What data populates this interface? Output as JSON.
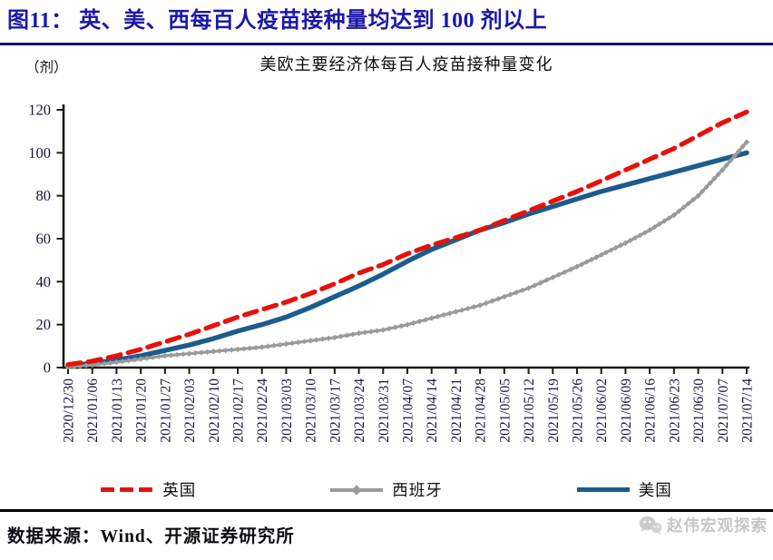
{
  "header": {
    "title": "图11： 英、美、西每百人疫苗接种量均达到 100 剂以上"
  },
  "chart_data": {
    "type": "line",
    "title": "美欧主要经济体每百人疫苗接种量变化",
    "unit_label": "（剂）",
    "xlabel": "",
    "ylabel": "（剂）",
    "ylim": [
      0,
      120
    ],
    "yticks": [
      0,
      20,
      40,
      60,
      80,
      100,
      120
    ],
    "grid": false,
    "legend_position": "bottom",
    "categories": [
      "2020/12/30",
      "2021/01/06",
      "2021/01/13",
      "2021/01/20",
      "2021/01/27",
      "2021/02/03",
      "2021/02/10",
      "2021/02/17",
      "2021/02/24",
      "2021/03/03",
      "2021/03/10",
      "2021/03/17",
      "2021/03/24",
      "2021/03/31",
      "2021/04/07",
      "2021/04/14",
      "2021/04/21",
      "2021/04/28",
      "2021/05/05",
      "2021/05/12",
      "2021/05/19",
      "2021/05/26",
      "2021/06/02",
      "2021/06/09",
      "2021/06/16",
      "2021/06/23",
      "2021/06/30",
      "2021/07/07",
      "2021/07/14"
    ],
    "series": [
      {
        "name": "英国",
        "color": "#e8100c",
        "line_style": "dashed",
        "marker": "none",
        "values": [
          1.4,
          3,
          5.5,
          8.5,
          12,
          15.5,
          19.5,
          23.5,
          27,
          30.5,
          34.5,
          39,
          44,
          48,
          53,
          57,
          60.5,
          64,
          68.5,
          73,
          77.5,
          82,
          87,
          92,
          97,
          102,
          108,
          114,
          119
        ]
      },
      {
        "name": "西班牙",
        "color": "#9a9a9a",
        "line_style": "solid",
        "marker": "diamond",
        "values": [
          0.3,
          1.2,
          2.5,
          4,
          5.5,
          6.5,
          7.5,
          8.5,
          9.5,
          11,
          12.5,
          14,
          16,
          17.5,
          20,
          23,
          26,
          29,
          33,
          37,
          42,
          47,
          52.5,
          58,
          64,
          71,
          80,
          92,
          105
        ]
      },
      {
        "name": "美国",
        "color": "#1c5c8c",
        "line_style": "solid",
        "marker": "none",
        "values": [
          1,
          2,
          3.5,
          5.5,
          8,
          10.5,
          13.5,
          17,
          20,
          23.5,
          28,
          33,
          38,
          43.5,
          49.5,
          55,
          59.5,
          64,
          67.5,
          71.5,
          75,
          78.5,
          82,
          85,
          88,
          91,
          94,
          97,
          100
        ]
      }
    ]
  },
  "footer": {
    "source": "数据来源：Wind、开源证券研究所",
    "watermark": "赵伟宏观探索"
  }
}
